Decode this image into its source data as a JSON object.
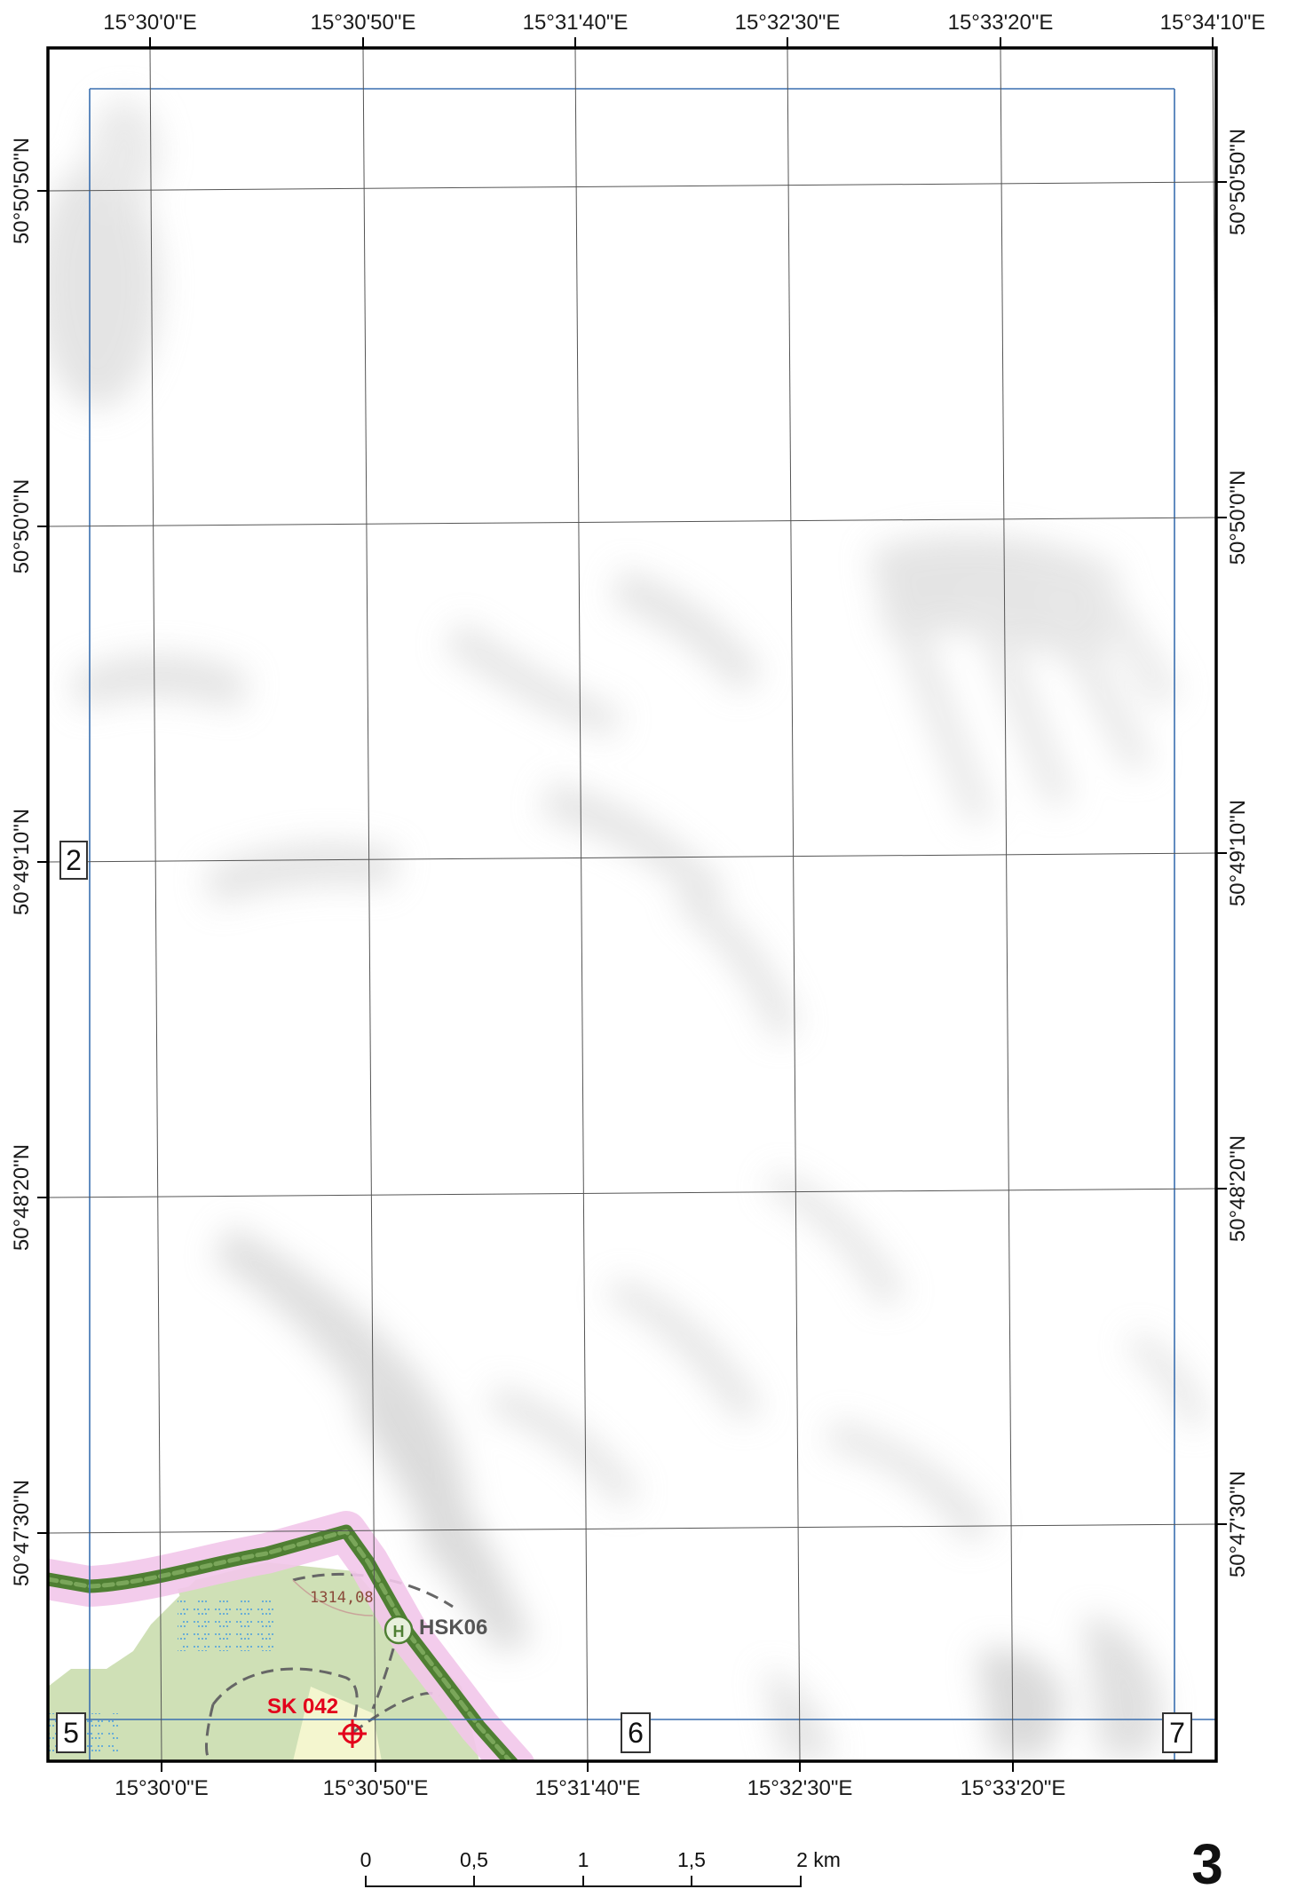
{
  "map": {
    "page_number": "3",
    "top_longitude_labels": [
      "15°30'0\"E",
      "15°30'50\"E",
      "15°31'40\"E",
      "15°32'30\"E",
      "15°33'20\"E",
      "15°34'10\"E"
    ],
    "bottom_longitude_labels": [
      "15°30'0\"E",
      "15°30'50\"E",
      "15°31'40\"E",
      "15°32'30\"E",
      "15°33'20\"E"
    ],
    "left_latitude_labels": [
      "50°50'50\"N",
      "50°50'0\"N",
      "50°49'10\"N",
      "50°48'20\"N",
      "50°47'30\"N"
    ],
    "right_latitude_labels": [
      "50°50'50\"N",
      "50°50'0\"N",
      "50°49'10\"N",
      "50°48'20\"N",
      "50°47'30\"N"
    ],
    "adjacent_sheets": {
      "west": "2",
      "southwest": "5",
      "south": "6",
      "southeast": "7"
    },
    "features": {
      "heliport_label": "HSK06",
      "heliport_symbol": "H",
      "point_label": "SK 042",
      "elevation": "1314,08"
    },
    "scale_bar": {
      "labels": [
        "0",
        "0,5",
        "1",
        "1,5",
        "2 km"
      ],
      "segment_values_km": [
        0,
        0.5,
        1,
        1.5,
        2
      ]
    },
    "colors": {
      "grid": "#555555",
      "sheet_index_line": "#3a6fb0",
      "route": "#5a8a3a",
      "route_buffer": "#f2c6ea",
      "forest": "#cfe0b6",
      "point_marker": "#e3001b",
      "frame": "#000000"
    }
  }
}
